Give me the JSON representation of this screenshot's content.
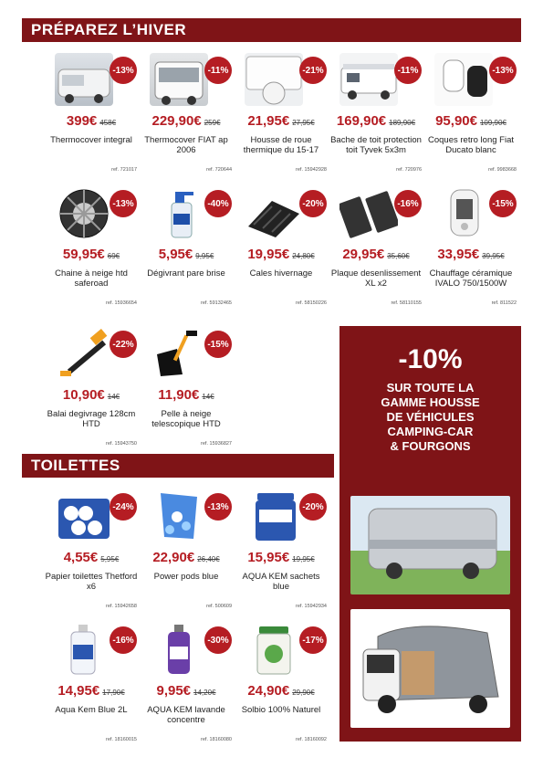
{
  "sections": {
    "winter": "PRÉPAREZ L’HIVER",
    "toilets": "TOILETTES"
  },
  "items": [
    {
      "badge": "-13%",
      "price": "399€",
      "old": "458€",
      "name": "Thermocover integral",
      "ref": "ref. 721017",
      "icon": "motorhome-cover-icon"
    },
    {
      "badge": "-11%",
      "price": "229,90€",
      "old": "259€",
      "name": "Thermocover FIAT ap 2006",
      "ref": "ref. 720644",
      "icon": "windscreen-cover-icon"
    },
    {
      "badge": "-21%",
      "price": "21,95€",
      "old": "27,95€",
      "name": "Housse de roue thermique du 15-17",
      "ref": "ref. 15942928",
      "icon": "wheel-cover-icon"
    },
    {
      "badge": "-11%",
      "price": "169,90€",
      "old": "189,90€",
      "name": "Bache de toit protection toit Tyvek 5x3m",
      "ref": "ref. 720976",
      "icon": "roof-cover-icon"
    },
    {
      "badge": "-13%",
      "price": "95,90€",
      "old": "109,90€",
      "name": "Coques retro long Fiat Ducato blanc",
      "ref": "ref. 9983668",
      "icon": "mirror-shell-icon"
    },
    {
      "badge": "-13%",
      "price": "59,95€",
      "old": "69€",
      "name": "Chaine à neige htd saferoad",
      "ref": "ref. 15936654",
      "icon": "snow-chain-icon"
    },
    {
      "badge": "-40%",
      "price": "5,95€",
      "old": "9,95€",
      "name": "Dégivrant pare brise",
      "ref": "ref. 59132465",
      "icon": "spray-bottle-icon"
    },
    {
      "badge": "-20%",
      "price": "19,95€",
      "old": "24,80€",
      "name": "Cales hivernage",
      "ref": "ref. 58150226",
      "icon": "leveling-block-icon"
    },
    {
      "badge": "-16%",
      "price": "29,95€",
      "old": "35,60€",
      "name": "Plaque desenlissement XL x2",
      "ref": "ref. 58110155",
      "icon": "traction-plate-icon"
    },
    {
      "badge": "-15%",
      "price": "33,95€",
      "old": "39,95€",
      "name": "Chauffage céramique IVALO 750/1500W",
      "ref": "ref. 811522",
      "icon": "heater-icon"
    },
    {
      "badge": "-22%",
      "price": "10,90€",
      "old": "14€",
      "name": "Balai degivrage 128cm HTD",
      "ref": "ref. 15943750",
      "icon": "snow-brush-icon"
    },
    {
      "badge": "-15%",
      "price": "11,90€",
      "old": "14€",
      "name": "Pelle à neige telescopique HTD",
      "ref": "ref. 15936827",
      "icon": "snow-shovel-icon"
    },
    {
      "badge": "-24%",
      "price": "4,55€",
      "old": "5,95€",
      "name": "Papier toilettes Thetford x6",
      "ref": "ref. 15942658",
      "icon": "toilet-paper-icon"
    },
    {
      "badge": "-13%",
      "price": "22,90€",
      "old": "26,40€",
      "name": "Power pods blue",
      "ref": "ref. 500609",
      "icon": "pods-bag-icon"
    },
    {
      "badge": "-20%",
      "price": "15,95€",
      "old": "19,95€",
      "name": "AQUA KEM sachets blue",
      "ref": "ref. 15942934",
      "icon": "tub-icon"
    },
    {
      "badge": "-16%",
      "price": "14,95€",
      "old": "17,90€",
      "name": "Aqua Kem Blue 2L",
      "ref": "ref. 18160015",
      "icon": "bottle-icon"
    },
    {
      "badge": "-30%",
      "price": "9,95€",
      "old": "14,20€",
      "name": "AQUA KEM lavande concentre",
      "ref": "ref. 18160080",
      "icon": "purple-bottle-icon"
    },
    {
      "badge": "-17%",
      "price": "24,90€",
      "old": "29,90€",
      "name": "Solbio 100% Naturel",
      "ref": "ref. 18160092",
      "icon": "green-tub-icon"
    }
  ],
  "promo": {
    "percent": "-10%",
    "line1": "SUR TOUTE LA",
    "line2": "GAMME HOUSSE",
    "line3": "DE VÉHICULES",
    "line4": "CAMPING-CAR",
    "line5": "& FOURGONS"
  }
}
